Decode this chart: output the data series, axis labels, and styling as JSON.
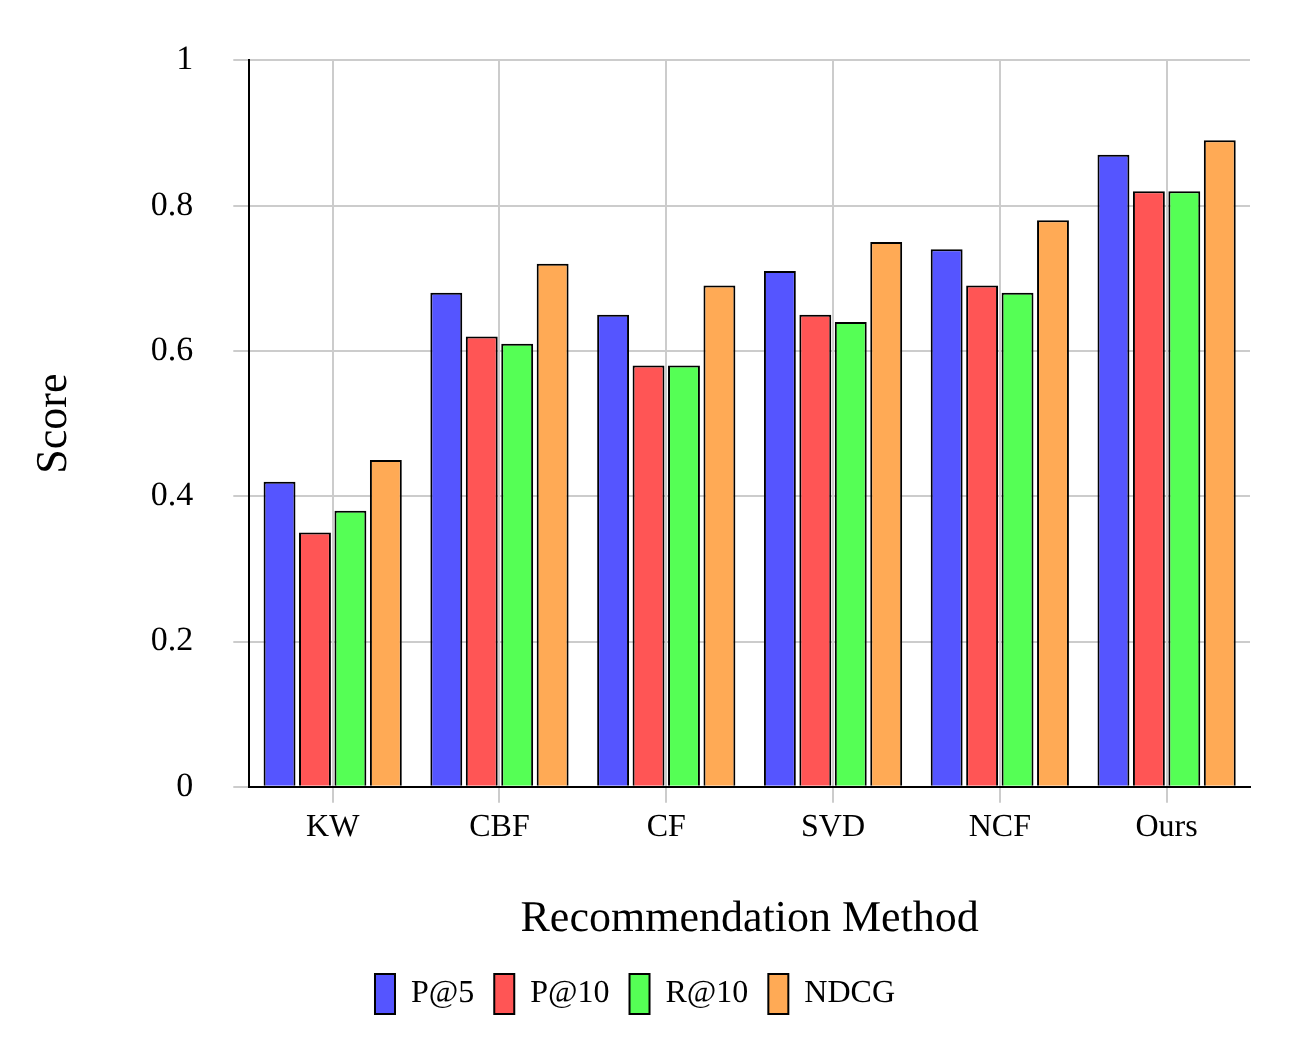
{
  "chart_data": {
    "type": "bar",
    "xlabel": "Recommendation Method",
    "ylabel": "Score",
    "categories": [
      "KW",
      "CBF",
      "CF",
      "SVD",
      "NCF",
      "Ours"
    ],
    "series": [
      {
        "name": "P@5",
        "color": "#5555ff",
        "values": [
          0.42,
          0.68,
          0.65,
          0.71,
          0.74,
          0.87
        ]
      },
      {
        "name": "P@10",
        "color": "#ff5555",
        "values": [
          0.35,
          0.62,
          0.58,
          0.65,
          0.69,
          0.82
        ]
      },
      {
        "name": "R@10",
        "color": "#55ff55",
        "values": [
          0.38,
          0.61,
          0.58,
          0.64,
          0.68,
          0.82
        ]
      },
      {
        "name": "NDCG",
        "color": "#ffaa55",
        "values": [
          0.45,
          0.72,
          0.69,
          0.75,
          0.78,
          0.89
        ]
      }
    ],
    "ylim": [
      0,
      1
    ],
    "yticks": [
      0,
      0.2,
      0.4,
      0.6,
      0.8,
      1
    ],
    "grid": true,
    "legend": "bottom"
  }
}
